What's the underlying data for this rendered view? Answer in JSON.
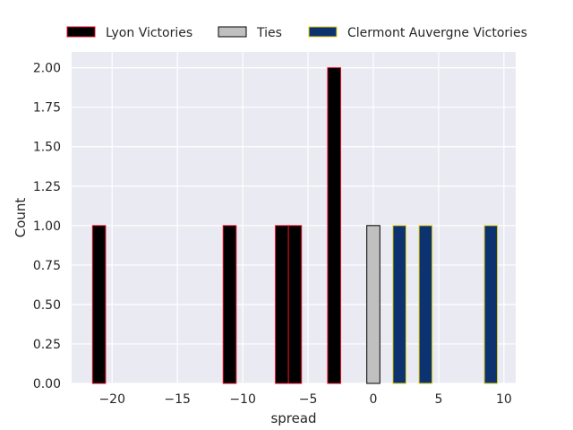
{
  "chart_data": {
    "type": "bar",
    "xlabel": "spread",
    "ylabel": "Count",
    "xlim": [
      -23.1,
      10.9
    ],
    "ylim": [
      0,
      2.1
    ],
    "x_ticks": [
      -20,
      -15,
      -10,
      -5,
      0,
      5,
      10
    ],
    "x_tick_labels": [
      "−20",
      "−15",
      "−10",
      "−5",
      "0",
      "5",
      "10"
    ],
    "y_ticks": [
      0,
      0.25,
      0.5,
      0.75,
      1.0,
      1.25,
      1.5,
      1.75,
      2.0
    ],
    "y_tick_labels": [
      "0.00",
      "0.25",
      "0.50",
      "0.75",
      "1.00",
      "1.25",
      "1.50",
      "1.75",
      "2.00"
    ],
    "bin_width": 1.0,
    "grid": true,
    "legend_position": "top",
    "series": [
      {
        "name": "Lyon Victories",
        "fill": "#000000",
        "edge": "#e0102a",
        "x": [
          -21,
          -11,
          -7,
          -6,
          -3
        ],
        "values": [
          1,
          1,
          1,
          1,
          2
        ]
      },
      {
        "name": "Ties",
        "fill": "#c0c0c0",
        "edge": "#000000",
        "x": [
          0
        ],
        "values": [
          1
        ]
      },
      {
        "name": "Clermont Auvergne Victories",
        "fill": "#0c3370",
        "edge": "#e6d21a",
        "x": [
          2,
          4,
          9
        ],
        "values": [
          1,
          1,
          1
        ]
      }
    ]
  }
}
